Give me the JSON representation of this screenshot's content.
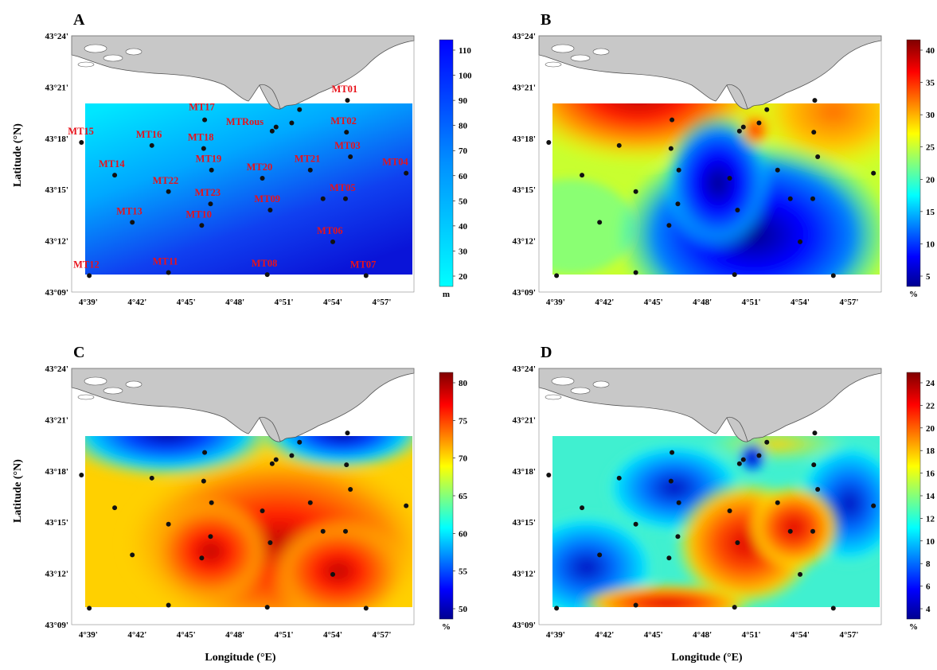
{
  "figure": {
    "y_axis_title": "Latitude (°N)",
    "x_axis_title": "Longitude (°E)"
  },
  "axes": {
    "lat_ticks": [
      "43°24'",
      "43°21'",
      "43°18'",
      "43°15'",
      "43°12'",
      "43°09'"
    ],
    "lon_ticks": [
      "4°39'",
      "4°42'",
      "4°45'",
      "4°48'",
      "4°51'",
      "4°54'",
      "4°57'"
    ]
  },
  "stations": [
    {
      "name": "MT01",
      "lon": 4.915,
      "lat": 43.337
    },
    {
      "name": "MT02",
      "lon": 4.914,
      "lat": 43.306
    },
    {
      "name": "MT03",
      "lon": 4.918,
      "lat": 43.282
    },
    {
      "name": "MT04",
      "lon": 4.975,
      "lat": 43.266
    },
    {
      "name": "MT05",
      "lon": 4.913,
      "lat": 43.241
    },
    {
      "name": "MT06",
      "lon": 4.9,
      "lat": 43.199
    },
    {
      "name": "MT07",
      "lon": 4.934,
      "lat": 43.166
    },
    {
      "name": "MT08",
      "lon": 4.833,
      "lat": 43.167
    },
    {
      "name": "MT09",
      "lon": 4.836,
      "lat": 43.23
    },
    {
      "name": "MT10",
      "lon": 4.766,
      "lat": 43.215
    },
    {
      "name": "MT11",
      "lon": 4.732,
      "lat": 43.169
    },
    {
      "name": "MT12",
      "lon": 4.651,
      "lat": 43.166
    },
    {
      "name": "MT13",
      "lon": 4.695,
      "lat": 43.218
    },
    {
      "name": "MT14",
      "lon": 4.677,
      "lat": 43.264
    },
    {
      "name": "MT15",
      "lon": 4.643,
      "lat": 43.296
    },
    {
      "name": "MT16",
      "lon": 4.715,
      "lat": 43.293
    },
    {
      "name": "MT17",
      "lon": 4.769,
      "lat": 43.318
    },
    {
      "name": "MT18",
      "lon": 4.768,
      "lat": 43.29
    },
    {
      "name": "MT19",
      "lon": 4.776,
      "lat": 43.269
    },
    {
      "name": "MT20",
      "lon": 4.828,
      "lat": 43.261
    },
    {
      "name": "MT21",
      "lon": 4.877,
      "lat": 43.269
    },
    {
      "name": "MT22",
      "lon": 4.732,
      "lat": 43.248
    },
    {
      "name": "MT23",
      "lon": 4.775,
      "lat": 43.236
    },
    {
      "name": "MTRous",
      "lon": 4.838,
      "lat": 43.307
    },
    {
      "name": "",
      "lon": 4.842,
      "lat": 43.311
    },
    {
      "name": "",
      "lon": 4.858,
      "lat": 43.315
    },
    {
      "name": "",
      "lon": 4.866,
      "lat": 43.328
    },
    {
      "name": "",
      "lon": 4.89,
      "lat": 43.241
    }
  ],
  "panels": [
    {
      "letter": "A",
      "unit": "m",
      "colorbar_ticks": [
        "110",
        "100",
        "90",
        "80",
        "70",
        "60",
        "50",
        "40",
        "30",
        "20"
      ],
      "colormap": "cyan-blue",
      "show_labels": true
    },
    {
      "letter": "B",
      "unit": "%",
      "colorbar_ticks": [
        "40",
        "35",
        "30",
        "25",
        "20",
        "15",
        "10",
        "5"
      ],
      "colormap": "jet",
      "show_labels": false
    },
    {
      "letter": "C",
      "unit": "%",
      "colorbar_ticks": [
        "80",
        "75",
        "70",
        "65",
        "60",
        "55",
        "50"
      ],
      "colormap": "jet",
      "show_labels": false
    },
    {
      "letter": "D",
      "unit": "%",
      "colorbar_ticks": [
        "24",
        "22",
        "20",
        "18",
        "16",
        "14",
        "12",
        "10",
        "8",
        "6",
        "4"
      ],
      "colormap": "jet",
      "show_labels": false
    }
  ],
  "colors": {
    "land": "#c8c8c8",
    "land_edge": "#555555",
    "station_dot": "#111111",
    "label": "#e8121b"
  }
}
